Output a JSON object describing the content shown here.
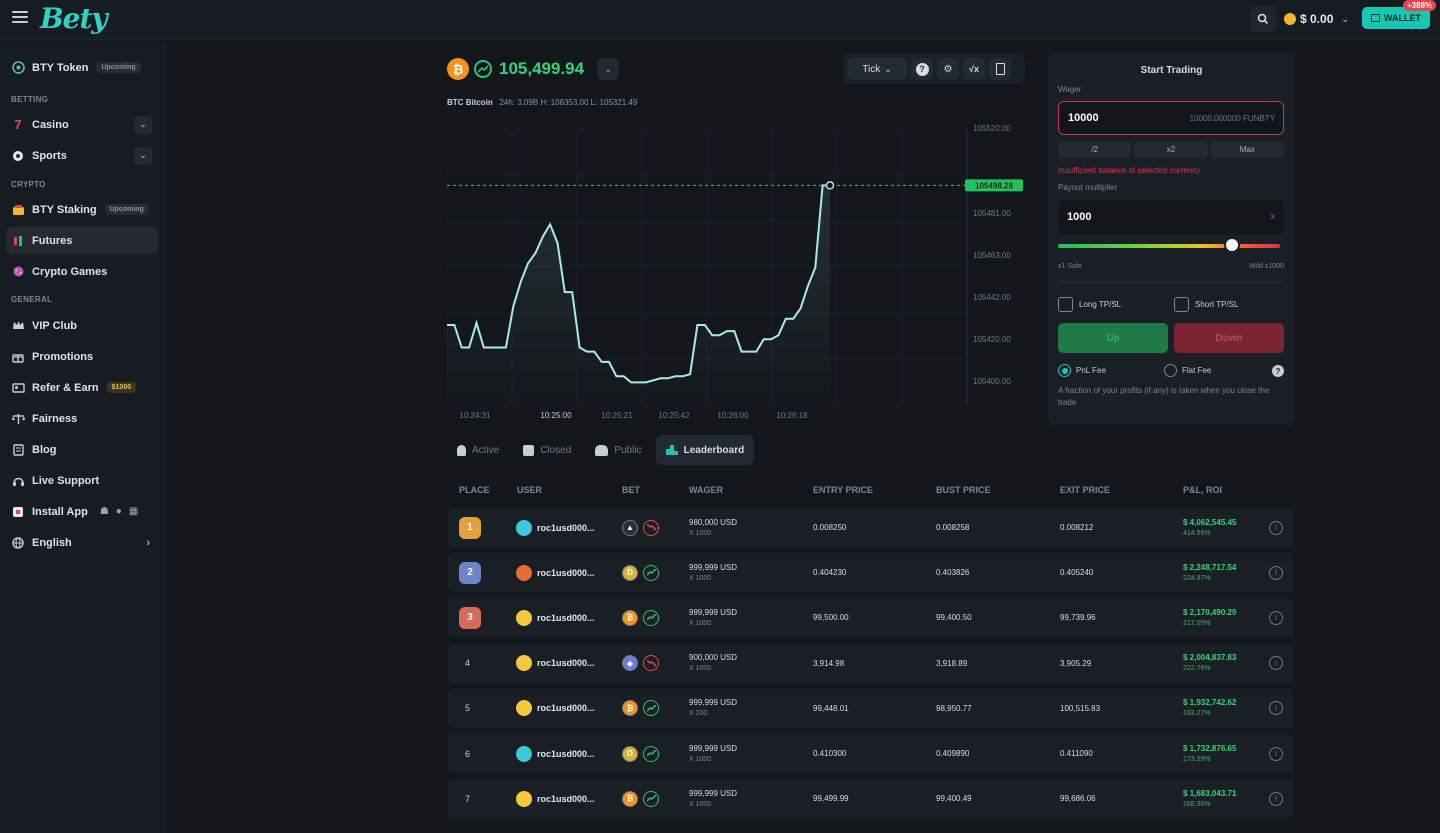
{
  "header": {
    "logo": "Bety",
    "balance": "$ 0.00",
    "wallet_label": "WALLET",
    "wallet_badge": "+388%"
  },
  "sidebar": {
    "token": {
      "label": "BTY Token",
      "tag": "Upcoming"
    },
    "sections": {
      "betting": "BETTING",
      "crypto": "CRYPTO",
      "general": "GENERAL"
    },
    "casino": "Casino",
    "sports": "Sports",
    "staking": {
      "label": "BTY Staking",
      "tag": "Upcoming"
    },
    "futures": "Futures",
    "crypto_games": "Crypto Games",
    "vip": "VIP Club",
    "promotions": "Promotions",
    "refer": {
      "label": "Refer & Earn",
      "tag": "$1000"
    },
    "fairness": "Fairness",
    "blog": "Blog",
    "support": "Live Support",
    "install": "Install App",
    "language": "English"
  },
  "market": {
    "price": "105,499.94",
    "symbol": "BTC",
    "name": "Bitcoin",
    "stats": "24h: 3.09B H: 108353.00 L: 105321.49"
  },
  "toolbar": {
    "tick_label": "Tick"
  },
  "chart_data": {
    "type": "line",
    "current_label": "105498.28",
    "x_ticks": [
      "10:24:31",
      "10:25:00",
      "10:25:21",
      "10:25:42",
      "10:26:00",
      "10:26:18"
    ],
    "y_ticks": [
      "105520.00",
      "105481.00",
      "105463.00",
      "105442.00",
      "105420.00",
      "105400.00"
    ],
    "ylim": [
      105392,
      105526
    ],
    "values": [
      105431,
      105431,
      105420,
      105420,
      105432,
      105420,
      105420,
      105420,
      105420,
      105440,
      105452,
      105461,
      105466,
      105474,
      105480,
      105471,
      105447,
      105447,
      105420,
      105418,
      105418,
      105413,
      105413,
      105406,
      105406,
      105403,
      105403,
      105403,
      105404,
      105405,
      105405,
      105406,
      105406,
      105407,
      105431,
      105431,
      105426,
      105426,
      105428,
      105428,
      105418,
      105418,
      105418,
      105424,
      105424,
      105426,
      105434,
      105434,
      105439,
      105450,
      105459,
      105499,
      105499
    ],
    "grid": true
  },
  "tabs": [
    "Active",
    "Closed",
    "Public",
    "Leaderboard"
  ],
  "leaderboard": {
    "headers": [
      "PLACE",
      "USER",
      "BET",
      "WAGER",
      "ENTRY PRICE",
      "BUST PRICE",
      "EXIT PRICE",
      "P&L, ROI"
    ],
    "rows": [
      {
        "place": "1",
        "user": "roc1usd000...",
        "wager": "980,000 USD",
        "mult": "X 1000",
        "entry": "0.008250",
        "bust": "0.008258",
        "exit": "0.008212",
        "pnl": "$ 4,062,545.45",
        "roi": "414.55%"
      },
      {
        "place": "2",
        "user": "roc1usd000...",
        "wager": "999,999 USD",
        "mult": "X 1000",
        "entry": "0.404230",
        "bust": "0.403826",
        "exit": "0.405240",
        "pnl": "$ 2,248,717.54",
        "roi": "224.87%"
      },
      {
        "place": "3",
        "user": "roc1usd000...",
        "wager": "999,999 USD",
        "mult": "X 1000",
        "entry": "99,500.00",
        "bust": "99,400.50",
        "exit": "99,739.96",
        "pnl": "$ 2,170,490.29",
        "roi": "217.05%"
      },
      {
        "place": "4",
        "user": "roc1usd000...",
        "wager": "900,000 USD",
        "mult": "X 1000",
        "entry": "3,914.98",
        "bust": "3,918.89",
        "exit": "3,905.29",
        "pnl": "$ 2,004,837.83",
        "roi": "222.76%"
      },
      {
        "place": "5",
        "user": "roc1usd000...",
        "wager": "999,999 USD",
        "mult": "X 200",
        "entry": "99,448.01",
        "bust": "98,950.77",
        "exit": "100,515.83",
        "pnl": "$ 1,932,742.62",
        "roi": "193.27%"
      },
      {
        "place": "6",
        "user": "roc1usd000...",
        "wager": "999,999 USD",
        "mult": "X 1000",
        "entry": "0.410300",
        "bust": "0.409890",
        "exit": "0.411090",
        "pnl": "$ 1,732,876.65",
        "roi": "173.29%"
      },
      {
        "place": "7",
        "user": "roc1usd000...",
        "wager": "999,999 USD",
        "mult": "X 1000",
        "entry": "99,499.99",
        "bust": "99,400.49",
        "exit": "99,686.06",
        "pnl": "$ 1,683,043.71",
        "roi": "168.30%"
      }
    ]
  },
  "trade_panel": {
    "title": "Start Trading",
    "wager_label": "Wager",
    "wager_value": "10000",
    "wager_conv": "10000.000000 FUNBTY",
    "quick": [
      "/2",
      "x2",
      "Max"
    ],
    "error": "Insufficient balance of selected currency",
    "payout_label": "Payout multiplier",
    "multiplier": "1000",
    "multiplier_suffix": "x",
    "safe_label": "x1 Safe",
    "wild_label": "Wild x1000",
    "long_label": "Long TP/SL",
    "short_label": "Short TP/SL",
    "up_label": "Up",
    "down_label": "Down",
    "pnl_fee": "PnL Fee",
    "flat_fee": "Flat Fee",
    "note": "A fraction of your profits (if any) is taken when you close the trade"
  }
}
